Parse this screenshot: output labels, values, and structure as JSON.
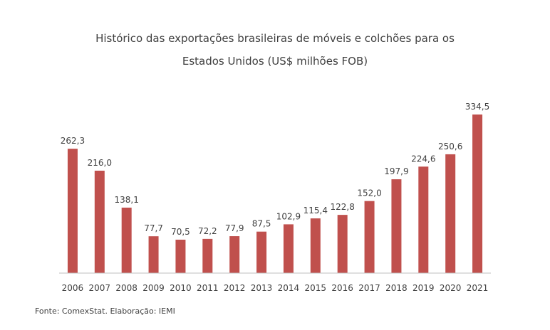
{
  "chart_data": {
    "type": "bar",
    "title_line1": "Histórico das exportações brasileiras de móveis e colchões para os",
    "title_line2": "Estados Unidos (US$ milhões FOB)",
    "categories": [
      "2006",
      "2007",
      "2008",
      "2009",
      "2010",
      "2011",
      "2012",
      "2013",
      "2014",
      "2015",
      "2016",
      "2017",
      "2018",
      "2019",
      "2020",
      "2021"
    ],
    "values": [
      262.3,
      216.0,
      138.1,
      77.7,
      70.5,
      72.2,
      77.9,
      87.5,
      102.9,
      115.4,
      122.8,
      152.0,
      197.9,
      224.6,
      250.6,
      334.5
    ],
    "value_labels": [
      "262,3",
      "216,0",
      "138,1",
      "77,7",
      "70,5",
      "72,2",
      "77,9",
      "87,5",
      "102,9",
      "115,4",
      "122,8",
      "152,0",
      "197,9",
      "224,6",
      "250,6",
      "334,5"
    ],
    "ylim": [
      0,
      334.5
    ],
    "grid": false,
    "bar_color": "#c0504d"
  },
  "source": "Fonte: ComexStat. Elaboração: IEMI"
}
